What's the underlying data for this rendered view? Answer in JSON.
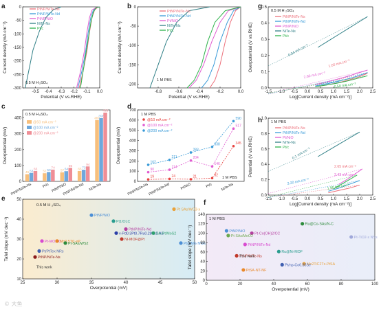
{
  "watermark": "© 大鱼",
  "chart_data": [
    {
      "panel": "a",
      "type": "line",
      "annotation": "0.5 M H2SO4",
      "xlabel": "Potential (V vs.RHE)",
      "ylabel": "Current density (mA cm⁻²)",
      "xlim": [
        -0.6,
        0.0
      ],
      "ylim": [
        -300,
        0
      ],
      "x_ticks": [
        "-0.5",
        "-0.4",
        "-0.3",
        "-0.2",
        "-0.1",
        "0.0"
      ],
      "y_ticks": [
        "0",
        "-50",
        "-100",
        "-150",
        "-200",
        "-250",
        "-300"
      ],
      "legend": [
        "Pt_NP/NiTe-Ns",
        "Pt_NP/NiTe-Nd",
        "Pt_NP/NiO",
        "NiTe-Ns",
        "Pt/c"
      ],
      "series": [
        {
          "name": "Pt_NP/NiTe-Ns",
          "color": "#ec6f7a",
          "x": [
            0.0,
            -0.02,
            -0.04,
            -0.06,
            -0.08,
            -0.1,
            -0.13,
            -0.16
          ],
          "y": [
            0,
            -3,
            -12,
            -40,
            -95,
            -165,
            -240,
            -300
          ]
        },
        {
          "name": "Pt_NP/NiTe-Nd",
          "color": "#3a9bd8",
          "x": [
            0.0,
            -0.03,
            -0.05,
            -0.07,
            -0.09,
            -0.11,
            -0.14,
            -0.17
          ],
          "y": [
            0,
            -3,
            -12,
            -40,
            -95,
            -165,
            -240,
            -300
          ]
        },
        {
          "name": "Pt_NP/NiO",
          "color": "#e05bd0",
          "x": [
            0.0,
            -0.03,
            -0.06,
            -0.08,
            -0.1,
            -0.12,
            -0.15,
            -0.18
          ],
          "y": [
            0,
            -3,
            -12,
            -40,
            -95,
            -165,
            -240,
            -300
          ]
        },
        {
          "name": "NiTe-Ns",
          "color": "#2f7f86",
          "x": [
            -0.3,
            -0.36,
            -0.42,
            -0.47,
            -0.52,
            -0.55,
            -0.58
          ],
          "y": [
            0,
            -10,
            -40,
            -90,
            -160,
            -230,
            -300
          ]
        },
        {
          "name": "Pt/c",
          "color": "#2db24a",
          "x": [
            0.0,
            -0.03,
            -0.05,
            -0.07,
            -0.09,
            -0.11,
            -0.13,
            -0.15
          ],
          "y": [
            0,
            -4,
            -20,
            -60,
            -120,
            -180,
            -240,
            -300
          ]
        }
      ]
    },
    {
      "panel": "b",
      "type": "line",
      "annotation": "1 M PBS",
      "xlabel": "Potential (V vs.RHE)",
      "ylabel": "Current density (mA cm⁻²)",
      "xlim": [
        -1.0,
        0.0
      ],
      "ylim": [
        -210,
        0
      ],
      "x_ticks": [
        "-0.8",
        "-0.6",
        "-0.4",
        "-0.2",
        "0.0"
      ],
      "y_ticks": [
        "0",
        "-50",
        "-100",
        "-150",
        "-200"
      ],
      "legend": [
        "Pt_NP/NiTe-Ns",
        "Pt_NP/NiTe-Nd",
        "Pt/NiO",
        "NiTe-Ns",
        "Pt/c"
      ],
      "series": [
        {
          "name": "Pt_NP/NiTe-Ns",
          "color": "#ec6f7a",
          "x": [
            0.0,
            -0.05,
            -0.1,
            -0.15,
            -0.2,
            -0.25,
            -0.3
          ],
          "y": [
            0,
            -10,
            -40,
            -90,
            -150,
            -190,
            -210
          ]
        },
        {
          "name": "Pt_NP/NiTe-Nd",
          "color": "#3a9bd8",
          "x": [
            0.0,
            -0.07,
            -0.13,
            -0.2,
            -0.26,
            -0.32,
            -0.38
          ],
          "y": [
            0,
            -10,
            -40,
            -90,
            -150,
            -190,
            -210
          ]
        },
        {
          "name": "Pt/NiO",
          "color": "#e05bd0",
          "x": [
            0.0,
            -0.12,
            -0.2,
            -0.28,
            -0.36,
            -0.43,
            -0.5
          ],
          "y": [
            0,
            -10,
            -40,
            -90,
            -150,
            -190,
            -210
          ]
        },
        {
          "name": "NiTe-Ns",
          "color": "#2f7f86",
          "x": [
            -0.3,
            -0.5,
            -0.62,
            -0.72,
            -0.8,
            -0.88
          ],
          "y": [
            0,
            -10,
            -40,
            -90,
            -150,
            -210
          ]
        },
        {
          "name": "Pt/c",
          "color": "#2db24a",
          "x": [
            0.0,
            -0.15,
            -0.25,
            -0.32,
            -0.38,
            -0.45,
            -0.52
          ],
          "y": [
            0,
            -10,
            -40,
            -90,
            -150,
            -190,
            -210
          ]
        }
      ]
    },
    {
      "panel": "c",
      "type": "bar",
      "annotation": "0.5 M H2SO4",
      "ylabel": "Overpotential (mV)",
      "ylim": [
        0,
        450
      ],
      "y_ticks": [
        "0",
        "100",
        "200",
        "300",
        "400"
      ],
      "categories": [
        "Pt_NP/NiTe-Ns",
        "Pt/c",
        "Pt_NP/NiO",
        "Pt_NP/NiTe-Nd",
        "NiTe-Ns"
      ],
      "legend": [
        "@50 mA cm⁻²",
        "@100 mA cm⁻²",
        "@200 mA cm⁻²"
      ],
      "series": [
        {
          "name": "@50 mA cm⁻²",
          "color": "#f7bf7c",
          "values": [
            45,
            51,
            57,
            65,
            387
          ]
        },
        {
          "name": "@100 mA cm⁻²",
          "color": "#6fa8dc",
          "values": [
            53,
            59,
            64,
            73,
            398
          ]
        },
        {
          "name": "@200 mA cm⁻²",
          "color": "#ef8e96",
          "values": [
            65,
            74,
            85,
            94,
            433
          ]
        }
      ],
      "bar_labels": [
        [
          "45",
          "53",
          "65"
        ],
        [
          "51",
          "59",
          "74"
        ],
        [
          "57",
          "64",
          "85"
        ],
        [
          "65",
          "73",
          "94"
        ],
        [
          "387",
          "398",
          "433"
        ]
      ]
    },
    {
      "panel": "d",
      "type": "line",
      "annotation": "1 M PBS",
      "ylabel": "Overpotential (mV)",
      "ylim": [
        0,
        700
      ],
      "y_ticks": [
        "0",
        "100",
        "200",
        "300",
        "400",
        "500",
        "600",
        "700"
      ],
      "categories": [
        "Pt_NP/NiTe-Ns",
        "Pt_NP/NiTe-Nd",
        "Pt/NiO",
        "Pt/c",
        "NiTe-Ns"
      ],
      "legend": [
        "@10 mA cm⁻²",
        "@100 mA cm⁻²",
        "@200 mA cm⁻²"
      ],
      "series": [
        {
          "name": "@10 mA cm⁻²",
          "color": "#e8413e",
          "values": [
            19,
            24,
            21,
            32,
            345
          ]
        },
        {
          "name": "@100 mA cm⁻²",
          "color": "#e05bd0",
          "values": [
            90,
            114,
            204,
            146,
            517
          ]
        },
        {
          "name": "@200 mA cm⁻²",
          "color": "#3a9bd8",
          "values": [
            162,
            211,
            283,
            338,
            590
          ]
        }
      ]
    },
    {
      "panel": "e",
      "type": "scatter",
      "annotation": "0.5 M H2SO4",
      "xlabel": "Overpotential (mV)",
      "ylabel": "Tafel slope (mV dec⁻¹)",
      "xlim": [
        25,
        50
      ],
      "ylim": [
        10,
        50
      ],
      "x_ticks": [
        "25",
        "30",
        "35",
        "40",
        "45",
        "50"
      ],
      "y_ticks": [
        "10",
        "20",
        "30",
        "40",
        "50"
      ],
      "points": [
        {
          "label": "This work",
          "x": 26.6,
          "y": 16,
          "color": "#333333"
        },
        {
          "label": "Pt_NP/NiTe-Ns",
          "x": 26.8,
          "y": 21,
          "color": "#8b1a1a"
        },
        {
          "label": "Pt/PtTex NRs",
          "x": 27.4,
          "y": 24,
          "color": "#3f5fb0"
        },
        {
          "label": "Pt-MOF-O",
          "x": 27.8,
          "y": 29,
          "color": "#d84bd0"
        },
        {
          "label": "Mo0.5Ti1-xP",
          "x": 30.0,
          "y": 29,
          "color": "#e9892b"
        },
        {
          "label": "Pt-SAs/WS2",
          "x": 31.2,
          "y": 28,
          "color": "#2e8b3c"
        },
        {
          "label": "Pt_NP/NiO",
          "x": 35.0,
          "y": 42,
          "color": "#4c8fd6"
        },
        {
          "label": "Pt1/OLC",
          "x": 38.2,
          "y": 39,
          "color": "#2a9d8f"
        },
        {
          "label": "v-Pd0.3Pt0.7Ru0.28Te2-AS",
          "x": 38.6,
          "y": 33,
          "color": "#2b3fa8"
        },
        {
          "label": "NI-MOF@Pt",
          "x": 39.4,
          "y": 30,
          "color": "#c0392b"
        },
        {
          "label": "Pt_NP/NiTe-Nd",
          "x": 40.0,
          "y": 35,
          "color": "#b43fa0"
        },
        {
          "label": "SA-Pt/MoS2",
          "x": 44.0,
          "y": 33,
          "color": "#2ea06e"
        },
        {
          "label": "Pt SAs/WO3-x",
          "x": 47.0,
          "y": 45,
          "color": "#e9a23b"
        },
        {
          "label": "Pt@MG NWs",
          "x": 48.0,
          "y": 28,
          "color": "#4c8fd6"
        }
      ]
    },
    {
      "panel": "f",
      "type": "scatter",
      "annotation": "1 M PBS",
      "xlabel": "Overpotential (mV)",
      "ylabel": "Tafel slope (mV dec⁻¹)",
      "xlim": [
        0,
        100
      ],
      "ylim": [
        0,
        140
      ],
      "x_ticks": [
        "0",
        "20",
        "40",
        "60",
        "80",
        "100"
      ],
      "y_ticks": [
        "0",
        "20",
        "40",
        "60",
        "80",
        "100",
        "120",
        "140"
      ],
      "points": [
        {
          "label": "Ru@Co-SAs/N-C",
          "x": 57,
          "y": 120,
          "color": "#2e8b3c"
        },
        {
          "label": "Pt_NP/NiO",
          "x": 12,
          "y": 105,
          "color": "#4c8fd6"
        },
        {
          "label": "Pt-Co(OH)2/CC",
          "x": 27,
          "y": 100,
          "color": "#b43fa0"
        },
        {
          "label": "Pt SAs/MoO2",
          "x": 13,
          "y": 95,
          "color": "#6aa84f"
        },
        {
          "label": "Pt-TiO2-x NSs",
          "x": 86,
          "y": 92,
          "color": "#9fa8da"
        },
        {
          "label": "Pt_NP/NiTe-Nd",
          "x": 23,
          "y": 76,
          "color": "#d84bd0"
        },
        {
          "label": "Ru@Ni-MOF",
          "x": 43,
          "y": 61,
          "color": "#2a9d8f"
        },
        {
          "label": "Pt_NP/NiTe-Ns",
          "x": 18,
          "y": 52,
          "color": "#c0392b"
        },
        {
          "label": "This work",
          "x": 18,
          "y": 52,
          "color": "#333333"
        },
        {
          "label": "Mo2TiC2Tx-PtSA",
          "x": 58,
          "y": 35,
          "color": "#e9a23b"
        },
        {
          "label": "Pt/np-Co0.85Se",
          "x": 45,
          "y": 33,
          "color": "#3f5fb0"
        },
        {
          "label": "Pt_SA-NT-NF",
          "x": 22,
          "y": 22,
          "color": "#e9892b"
        }
      ]
    },
    {
      "panel": "g",
      "type": "line",
      "annotation": "0.5 M H2SO4",
      "xlabel": "Log[Current density (mA cm⁻²)]",
      "ylabel": "Overpotential (V vs.RHE)",
      "xlim": [
        -1.5,
        2.5
      ],
      "ylim": [
        0,
        0.5
      ],
      "x_ticks": [
        "-1.5",
        "-1.0",
        "-0.5",
        "0.0",
        "0.5",
        "1.0",
        "1.5",
        "2.0",
        "2.5"
      ],
      "y_ticks": [
        "0.0",
        "0.1",
        "0.2",
        "0.3",
        "0.4",
        "0.5"
      ],
      "legend": [
        "Pt_NP/NiTe-Ns",
        "Pt_NP/NiTe-Nd",
        "Pt_NP/NiO",
        "NiTe-Ns",
        "Pt/c"
      ],
      "tafel_labels": [
        "0.04 mA cm⁻²",
        "1.00 mA cm⁻²",
        "2.60 mA cm⁻²",
        "0.63 mA cm⁻²",
        "0.50 mA cm⁻²"
      ],
      "series": [
        {
          "name": "Pt_NP/NiTe-Ns",
          "color": "#ec6f7a",
          "x": [
            0.4,
            0.8,
            1.2,
            1.6,
            2.0,
            2.3
          ],
          "y": [
            0.01,
            0.02,
            0.033,
            0.05,
            0.07,
            0.09
          ]
        },
        {
          "name": "Pt_NP/NiTe-Nd",
          "color": "#3a9bd8",
          "x": [
            0.3,
            0.7,
            1.1,
            1.5,
            1.9,
            2.3
          ],
          "y": [
            0.012,
            0.024,
            0.038,
            0.054,
            0.072,
            0.095
          ]
        },
        {
          "name": "Pt_NP/NiO",
          "color": "#e05bd0",
          "x": [
            0.3,
            0.7,
            1.1,
            1.5,
            1.9,
            2.3
          ],
          "y": [
            0.02,
            0.035,
            0.052,
            0.07,
            0.09,
            0.11
          ]
        },
        {
          "name": "NiTe-Ns",
          "color": "#2f7f86",
          "x": [
            0.4,
            0.8,
            1.2,
            1.6,
            2.0,
            2.3
          ],
          "y": [
            0.25,
            0.29,
            0.33,
            0.37,
            0.41,
            0.44
          ]
        },
        {
          "name": "Pt/c",
          "color": "#2db24a",
          "x": [
            0.3,
            0.7,
            1.1,
            1.5,
            1.9,
            2.3
          ],
          "y": [
            0.008,
            0.017,
            0.028,
            0.042,
            0.058,
            0.075
          ]
        }
      ]
    },
    {
      "panel": "h",
      "type": "line",
      "annotation": "1 M PBS",
      "xlabel": "Log[Current density (mA cm⁻²)]",
      "ylabel": "Potential (V vs.RHE)",
      "xlim": [
        -1.5,
        2.5
      ],
      "ylim": [
        0,
        1.0
      ],
      "x_ticks": [
        "-1.5",
        "-1.0",
        "-0.5",
        "0.0",
        "0.5",
        "1.0",
        "1.5",
        "2.0",
        "2.5"
      ],
      "y_ticks": [
        "0.0",
        "0.2",
        "0.4",
        "0.6",
        "0.8",
        "1.0"
      ],
      "legend": [
        "Pt_NP/NiTe-Ns",
        "Pt_NP/NiTe-Nd",
        "Pt/NiO",
        "NiTe-Ns",
        "Pt/c"
      ],
      "tafel_labels": [
        "0.1 mA cm⁻²",
        "2.65 mA cm⁻²",
        "3.43 mA cm⁻²",
        "3.20 mA cm⁻²",
        "1.90 mA cm⁻²"
      ],
      "series": [
        {
          "name": "Pt_NP/NiTe-Ns",
          "color": "#ec6f7a",
          "x": [
            0.8,
            1.2,
            1.6,
            2.0
          ],
          "y": [
            0.03,
            0.06,
            0.09,
            0.13
          ]
        },
        {
          "name": "Pt_NP/NiTe-Nd",
          "color": "#3a9bd8",
          "x": [
            0.8,
            1.2,
            1.6,
            2.0
          ],
          "y": [
            0.05,
            0.09,
            0.14,
            0.19
          ]
        },
        {
          "name": "Pt/NiO",
          "color": "#e05bd0",
          "x": [
            1.2,
            1.5,
            1.8,
            2.1
          ],
          "y": [
            0.14,
            0.2,
            0.27,
            0.34
          ]
        },
        {
          "name": "NiTe-Ns",
          "color": "#2f7f86",
          "x": [
            0.4,
            0.8,
            1.2,
            1.6,
            2.0
          ],
          "y": [
            0.5,
            0.58,
            0.66,
            0.74,
            0.82
          ]
        },
        {
          "name": "Pt/c",
          "color": "#2db24a",
          "x": [
            1.0,
            1.3,
            1.6,
            1.9
          ],
          "y": [
            0.08,
            0.14,
            0.2,
            0.26
          ]
        }
      ]
    }
  ],
  "panel_letters": [
    "a",
    "b",
    "c",
    "d",
    "e",
    "f",
    "g",
    "h"
  ]
}
